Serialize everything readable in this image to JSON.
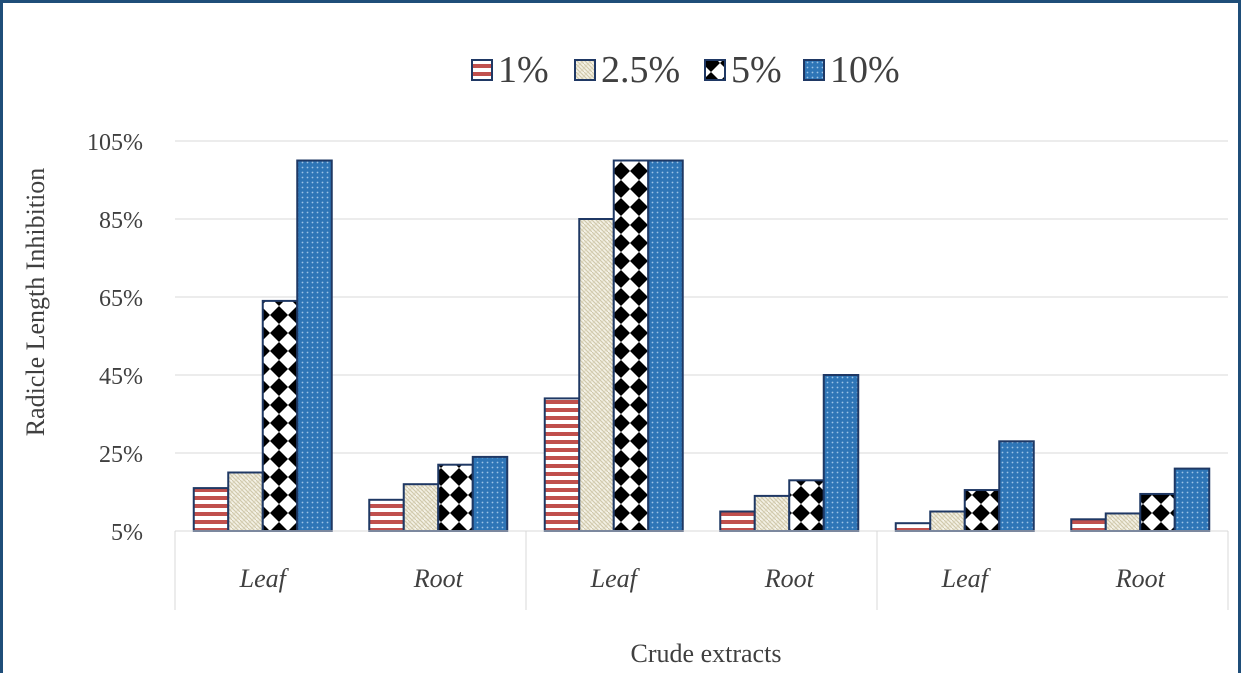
{
  "chart_data": {
    "type": "bar",
    "ylabel": "Radicle Length Inhibition",
    "xlabel": "Crude extracts",
    "ylim": [
      5,
      105
    ],
    "yticks": [
      "5%",
      "25%",
      "45%",
      "65%",
      "85%",
      "105%"
    ],
    "ytick_values": [
      5,
      25,
      45,
      65,
      85,
      105
    ],
    "grid": true,
    "legend_position": "top",
    "categories": [
      "Leaf",
      "Root",
      "Leaf",
      "Root",
      "Leaf",
      "Root"
    ],
    "series": [
      {
        "name": "1%",
        "values": [
          16,
          13,
          39,
          10,
          7,
          8
        ],
        "color": "#c0504d",
        "pattern": "horizontal-stripes"
      },
      {
        "name": "2.5%",
        "values": [
          20,
          17,
          85,
          14,
          10,
          9.5
        ],
        "color": "#ddd9c3",
        "pattern": "weave"
      },
      {
        "name": "5%",
        "values": [
          64,
          22,
          100,
          18,
          15.5,
          14.5
        ],
        "color": "#000000",
        "pattern": "checker-diamond"
      },
      {
        "name": "10%",
        "values": [
          100,
          24,
          100,
          45,
          28,
          21
        ],
        "color": "#2e75b6",
        "pattern": "dots"
      }
    ]
  }
}
